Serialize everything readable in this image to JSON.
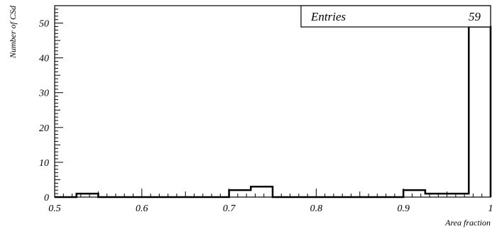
{
  "chart_data": {
    "type": "histogram",
    "title": "",
    "xlabel": "Area fraction",
    "ylabel": "Number of CSd",
    "xlim": [
      0.5,
      1.0
    ],
    "ylim": [
      0,
      55
    ],
    "bin_width": 0.025,
    "bins": [
      {
        "x_low": 0.5,
        "x_high": 0.525,
        "count": 0
      },
      {
        "x_low": 0.525,
        "x_high": 0.55,
        "count": 1
      },
      {
        "x_low": 0.55,
        "x_high": 0.575,
        "count": 0
      },
      {
        "x_low": 0.575,
        "x_high": 0.6,
        "count": 0
      },
      {
        "x_low": 0.6,
        "x_high": 0.625,
        "count": 0
      },
      {
        "x_low": 0.625,
        "x_high": 0.65,
        "count": 0
      },
      {
        "x_low": 0.65,
        "x_high": 0.675,
        "count": 0
      },
      {
        "x_low": 0.675,
        "x_high": 0.7,
        "count": 0
      },
      {
        "x_low": 0.7,
        "x_high": 0.725,
        "count": 2
      },
      {
        "x_low": 0.725,
        "x_high": 0.75,
        "count": 3
      },
      {
        "x_low": 0.75,
        "x_high": 0.775,
        "count": 0
      },
      {
        "x_low": 0.775,
        "x_high": 0.8,
        "count": 0
      },
      {
        "x_low": 0.8,
        "x_high": 0.825,
        "count": 0
      },
      {
        "x_low": 0.825,
        "x_high": 0.85,
        "count": 0
      },
      {
        "x_low": 0.85,
        "x_high": 0.875,
        "count": 0
      },
      {
        "x_low": 0.875,
        "x_high": 0.9,
        "count": 0
      },
      {
        "x_low": 0.9,
        "x_high": 0.925,
        "count": 2
      },
      {
        "x_low": 0.925,
        "x_high": 0.95,
        "count": 1
      },
      {
        "x_low": 0.95,
        "x_high": 0.975,
        "count": 1
      },
      {
        "x_low": 0.975,
        "x_high": 1.0,
        "count": 49
      }
    ],
    "x_ticks": [
      {
        "value": 0.5,
        "label": "0.5"
      },
      {
        "value": 0.6,
        "label": "0.6"
      },
      {
        "value": 0.7,
        "label": "0.7"
      },
      {
        "value": 0.8,
        "label": "0.8"
      },
      {
        "value": 0.9,
        "label": "0.9"
      },
      {
        "value": 1.0,
        "label": "1"
      }
    ],
    "y_ticks": [
      {
        "value": 0,
        "label": "0"
      },
      {
        "value": 10,
        "label": "10"
      },
      {
        "value": 20,
        "label": "20"
      },
      {
        "value": 30,
        "label": "30"
      },
      {
        "value": 40,
        "label": "40"
      },
      {
        "value": 50,
        "label": "50"
      }
    ],
    "stats_box": {
      "entries_label": "Entries",
      "entries_value": "59"
    },
    "grid": false,
    "legend": "none"
  }
}
